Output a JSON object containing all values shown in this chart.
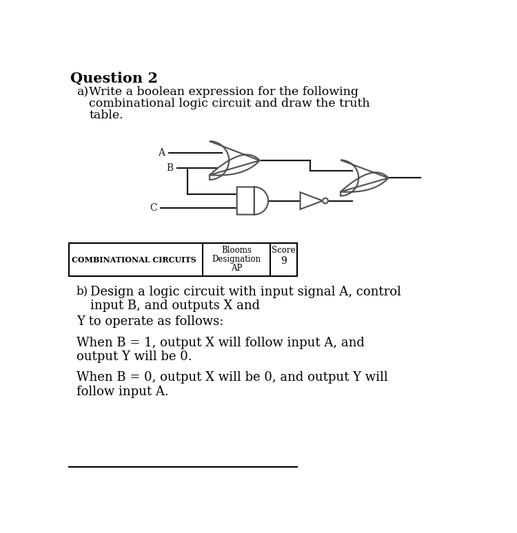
{
  "title": "Question 2",
  "part_a_label": "a)",
  "part_a_text1": "Write a boolean expression for the following",
  "part_a_text2": "combinational logic circuit and draw the truth",
  "part_a_text3": "table.",
  "input_A": "A",
  "input_B": "B",
  "input_C": "C",
  "table_col1": "COMBINATIONAL CIRCUITS",
  "table_col2_line1": "Blooms",
  "table_col2_line2": "Designation",
  "table_col2_line3": "AP",
  "table_col3_line1": "Score",
  "table_col3_line2": "9",
  "part_b_label": "b)",
  "part_b_text1": "Design a logic circuit with input signal A, control",
  "part_b_text2": "input B, and outputs X and",
  "part_b_text3": "Y to operate as follows:",
  "part_b_text4": "When B = 1, output X will follow input A, and",
  "part_b_text5": "output Y will be 0.",
  "part_b_text6": "When B = 0, output X will be 0, and output Y will",
  "part_b_text7": "follow input A.",
  "bg_color": "#ffffff",
  "text_color": "#000000",
  "line_color": "#1a1a1a",
  "gate_facecolor": "#ffffff",
  "gate_edgecolor": "#555555"
}
